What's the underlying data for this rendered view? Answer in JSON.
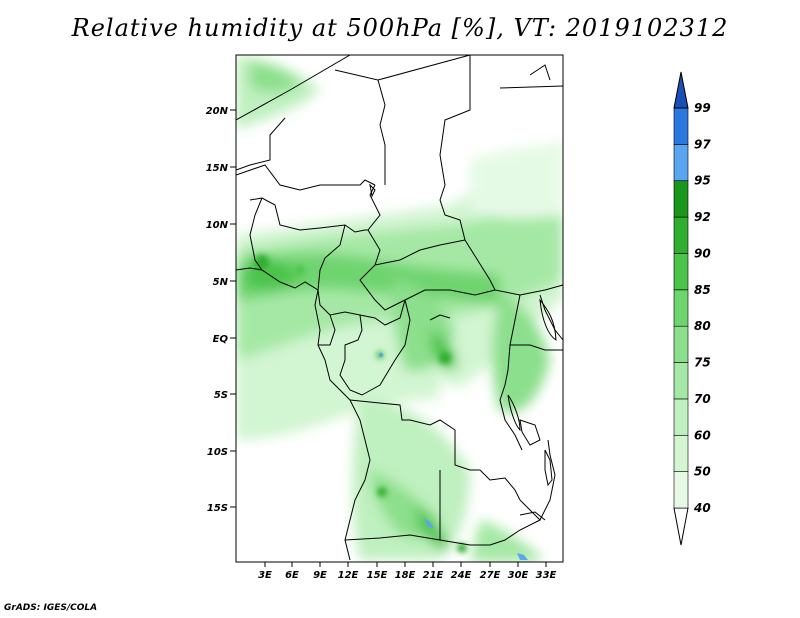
{
  "title": "Relative humidity at 500hPa [%], VT: 2019102312",
  "credit": "GrADS: IGES/COLA",
  "map": {
    "lat_ticks": [
      "20N",
      "15N",
      "10N",
      "5N",
      "EQ",
      "5S",
      "10S",
      "15S"
    ],
    "lon_ticks": [
      "3E",
      "6E",
      "9E",
      "12E",
      "15E",
      "18E",
      "21E",
      "24E",
      "27E",
      "30E",
      "33E"
    ]
  },
  "colorbar": {
    "levels": [
      "40",
      "50",
      "60",
      "70",
      "75",
      "80",
      "85",
      "90",
      "92",
      "95",
      "97",
      "99"
    ],
    "colors": [
      "#ffffff",
      "#e5fae5",
      "#d2f5d2",
      "#bff0bf",
      "#a5e8a5",
      "#8cdf8c",
      "#6ed46e",
      "#4cc44c",
      "#2fae2f",
      "#1a961a",
      "#5aa5f0",
      "#2a78e0",
      "#1a4fb8"
    ]
  }
}
